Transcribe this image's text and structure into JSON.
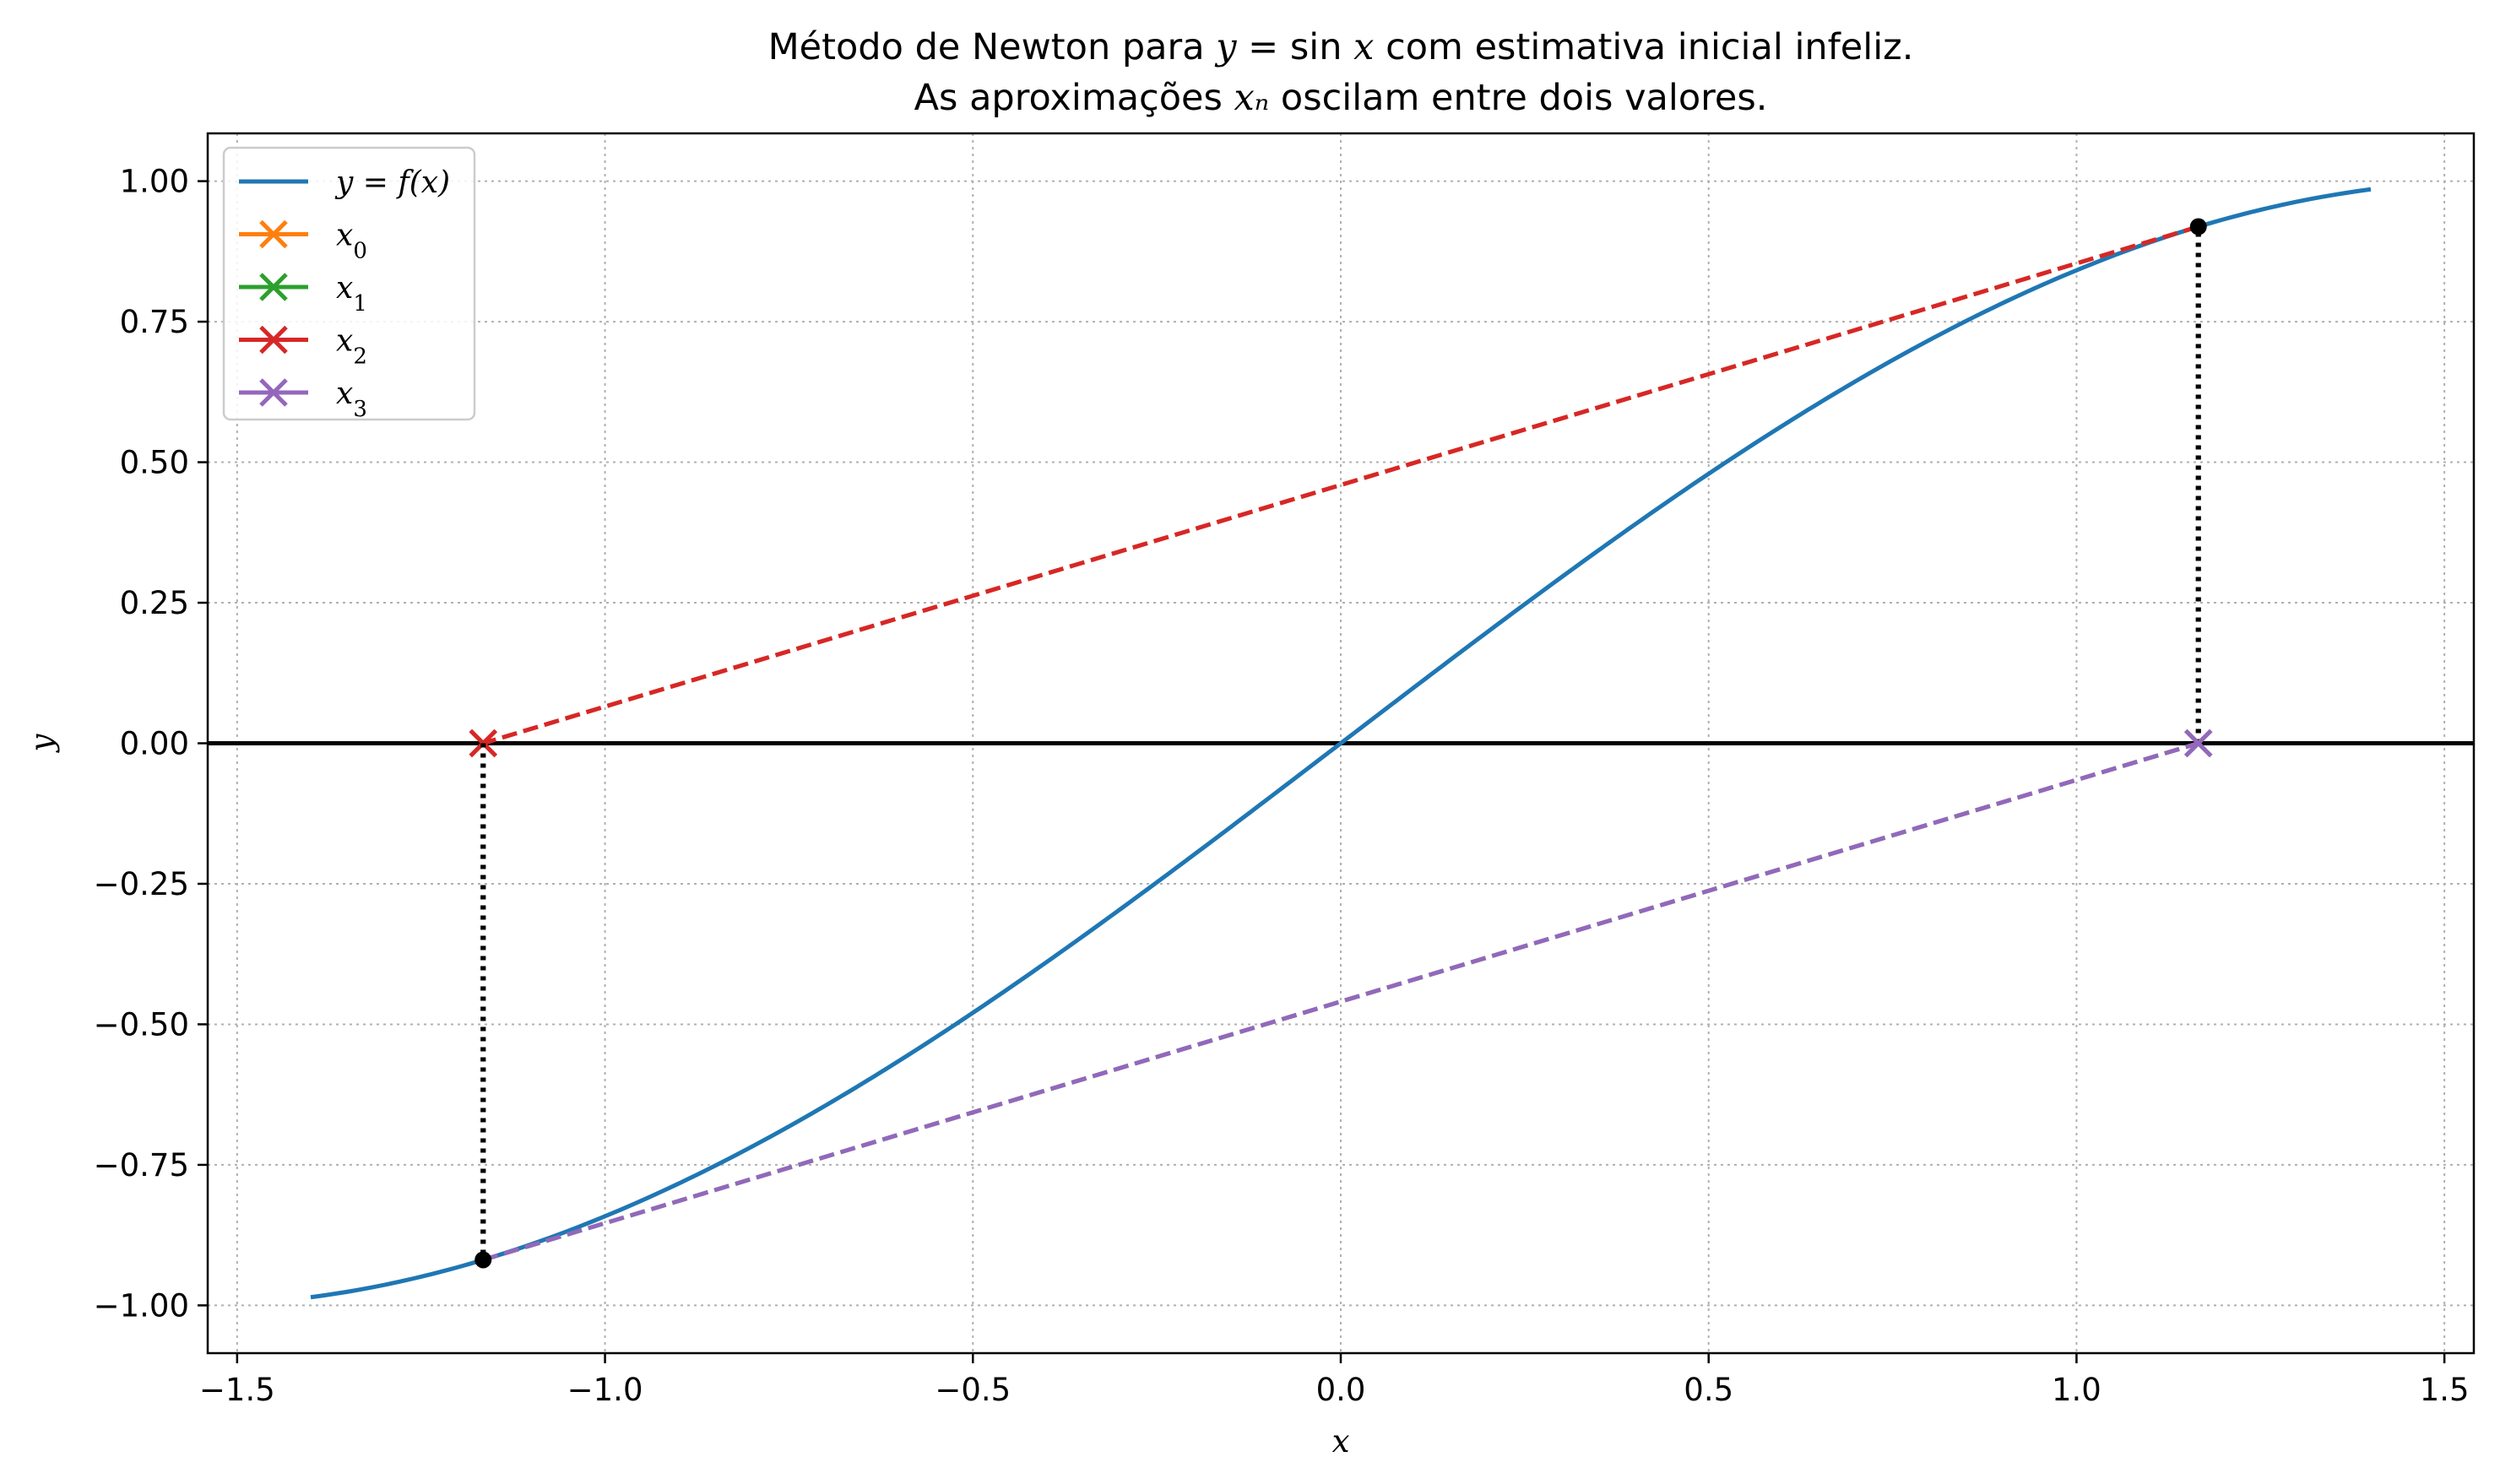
{
  "chart_data": {
    "type": "line",
    "title_lines": [
      "Método de Newton para y = sin x com estimativa inicial infeliz.",
      "As aproximações xₙ oscilam entre dois valores."
    ],
    "xlabel": "x",
    "ylabel": "y",
    "xlim": [
      -1.54,
      1.54
    ],
    "ylim": [
      -1.085,
      1.085
    ],
    "xticks": [
      -1.5,
      -1.0,
      -0.5,
      0.0,
      0.5,
      1.0,
      1.5
    ],
    "xtick_labels": [
      "−1.5",
      "−1.0",
      "−0.5",
      "0.0",
      "0.5",
      "1.0",
      "1.5"
    ],
    "yticks": [
      1.0,
      0.75,
      0.5,
      0.25,
      0.0,
      -0.25,
      -0.5,
      -0.75,
      -1.0
    ],
    "ytick_labels": [
      "1.00",
      "0.75",
      "0.50",
      "0.25",
      "0.00",
      "−0.25",
      "−0.50",
      "−0.75",
      "−1.00"
    ],
    "grid": true,
    "legend_position": "upper-left",
    "curve": {
      "name": "y = f(x)",
      "function": "sin",
      "x_range": [
        -1.4,
        1.4
      ],
      "color": "#1f77b4"
    },
    "x0_value": 1.1656,
    "iterates": [
      {
        "name": "x0",
        "color": "#ff7f0e",
        "x_from": 1.1656,
        "x_to": -1.1656
      },
      {
        "name": "x1",
        "color": "#2ca02c",
        "x_from": -1.1656,
        "x_to": 1.1656
      },
      {
        "name": "x2",
        "color": "#d62728",
        "x_from": 1.1656,
        "x_to": -1.1656
      },
      {
        "name": "x3",
        "color": "#9467bd",
        "x_from": -1.1656,
        "x_to": 1.1656
      }
    ],
    "legend_entries": [
      {
        "label": "y = f(x)",
        "color": "#1f77b4",
        "marker": "line"
      },
      {
        "label": "x0",
        "color": "#ff7f0e",
        "marker": "x"
      },
      {
        "label": "x1",
        "color": "#2ca02c",
        "marker": "x"
      },
      {
        "label": "x2",
        "color": "#d62728",
        "marker": "x"
      },
      {
        "label": "x3",
        "color": "#9467bd",
        "marker": "x"
      }
    ]
  }
}
